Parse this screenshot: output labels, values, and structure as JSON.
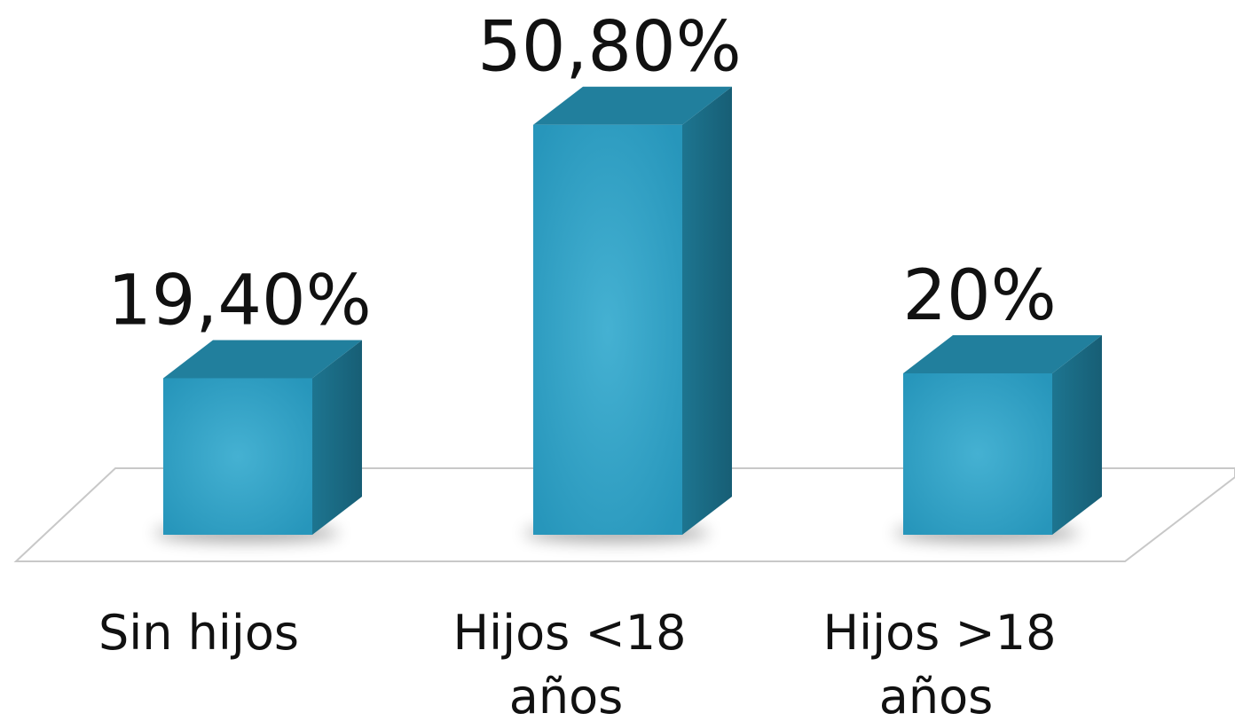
{
  "chart_data": {
    "type": "bar",
    "style": "3d",
    "categories": [
      "Sin hijos",
      "Hijos <18 años",
      "Hijos >18 años"
    ],
    "category_lines": [
      [
        "Sin hijos"
      ],
      [
        "Hijos <18",
        "años"
      ],
      [
        "Hijos >18",
        "años"
      ]
    ],
    "values": [
      19.4,
      50.8,
      20
    ],
    "value_labels": [
      "19,40%",
      "50,80%",
      "20%"
    ],
    "title": "",
    "xlabel": "",
    "ylabel": "",
    "ylim": [
      0,
      55
    ],
    "grid": false,
    "legend": "none",
    "colors": {
      "bar_front": "#2b9fc4",
      "bar_front_center": "#45b1d2",
      "bar_side": "#1a6c86",
      "bar_top": "#217f9d",
      "floor_line": "#c8c8c8"
    }
  }
}
